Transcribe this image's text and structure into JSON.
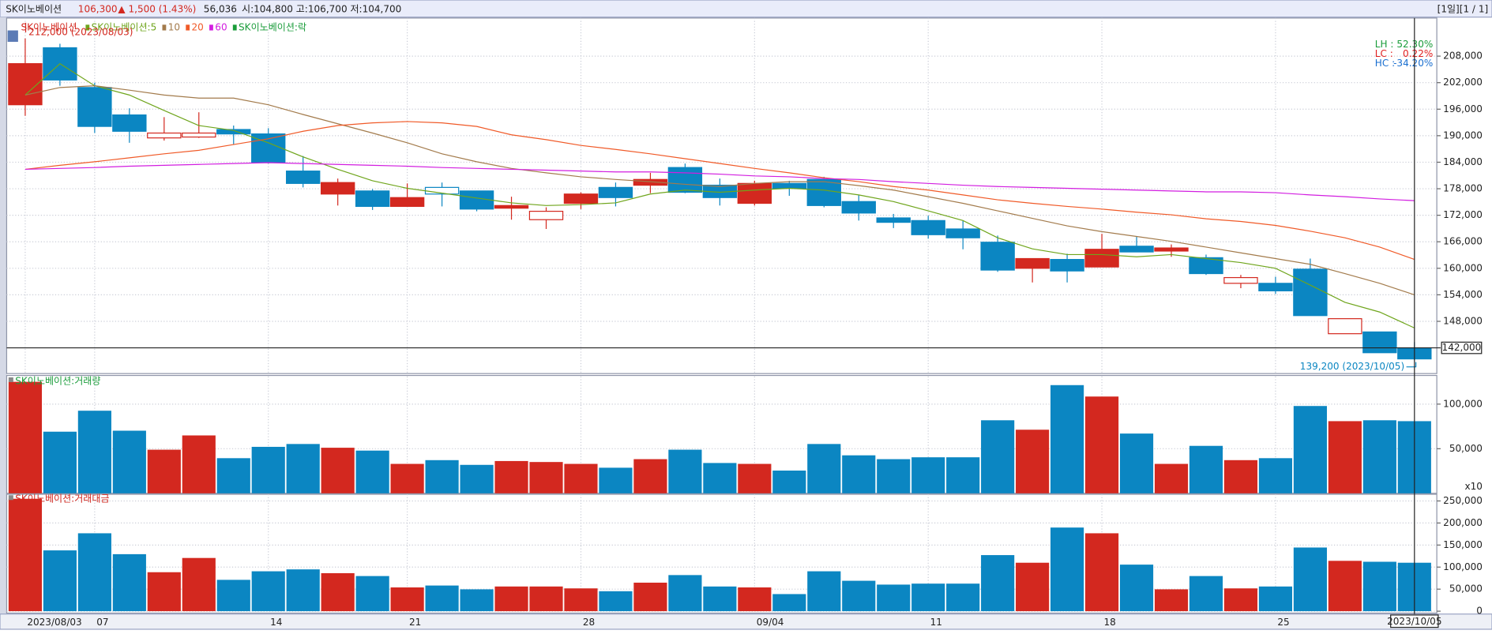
{
  "header": {
    "name": "SK이노베이션",
    "price": "106,300",
    "change": "▲ 1,500 (1.43%)",
    "volume": "56,036",
    "ohl": "시:104,800 고:106,700 저:104,700",
    "period": "[1일][1 / 1]"
  },
  "chart_data": [
    {
      "type": "candlestick",
      "name": "SK이노베이션",
      "legend_extra": "SK이노베이션:락",
      "categories": [
        "2023/08/03",
        null,
        "07",
        null,
        null,
        null,
        null,
        "14",
        null,
        null,
        null,
        "21",
        null,
        null,
        null,
        null,
        "28",
        null,
        null,
        null,
        null,
        "09/04",
        null,
        null,
        null,
        null,
        "11",
        null,
        null,
        null,
        null,
        "18",
        null,
        null,
        null,
        null,
        "25",
        null,
        null,
        null,
        null
      ],
      "open": [
        197000,
        209900,
        200900,
        194700,
        189500,
        189700,
        191400,
        190400,
        182000,
        176800,
        177500,
        174000,
        178300,
        177500,
        173600,
        171000,
        174700,
        178300,
        178800,
        182800,
        178800,
        174700,
        179200,
        180100,
        175100,
        171400,
        170800,
        168900,
        165900,
        160000,
        162000,
        160300,
        165000,
        163900,
        162400,
        156600,
        156600,
        159800,
        145200,
        145600,
        142000
      ],
      "high": [
        212000,
        210800,
        202000,
        196200,
        194200,
        195300,
        192300,
        191700,
        185400,
        180300,
        177900,
        179200,
        179400,
        177500,
        176200,
        173800,
        177200,
        179400,
        181600,
        183700,
        180300,
        179800,
        179800,
        180700,
        176600,
        172300,
        171900,
        170800,
        167400,
        162200,
        163300,
        167800,
        167200,
        165400,
        163100,
        158500,
        158100,
        162200,
        148600,
        145600,
        143300
      ],
      "low": [
        194500,
        201300,
        190600,
        188400,
        188900,
        189500,
        188000,
        183700,
        178300,
        174200,
        173200,
        174000,
        174000,
        172900,
        171000,
        168900,
        173400,
        174000,
        177000,
        177000,
        174200,
        174200,
        176400,
        173800,
        170800,
        169100,
        166700,
        164300,
        159200,
        156800,
        156800,
        160300,
        163700,
        162600,
        158500,
        155500,
        154200,
        149300,
        145200,
        140900,
        139200
      ],
      "close": [
        206300,
        202600,
        192100,
        191000,
        190600,
        190600,
        190400,
        183900,
        179200,
        179400,
        174000,
        176000,
        176800,
        173400,
        174200,
        172900,
        176800,
        176000,
        180100,
        177200,
        176000,
        179200,
        178100,
        174200,
        172500,
        170400,
        167600,
        166900,
        159600,
        162200,
        159400,
        164300,
        163700,
        164600,
        158800,
        157900,
        154900,
        149300,
        148600,
        140900,
        139500
      ],
      "hollow": [
        4,
        5,
        12,
        15,
        35,
        38
      ],
      "up_color": "#d3281f",
      "down_color": "#0b86c2",
      "series": [
        {
          "name": "SK이노베이션:5",
          "color": "#6fa51c",
          "values": [
            199200,
            206300,
            201300,
            199200,
            195700,
            192300,
            191200,
            188400,
            185200,
            182400,
            179800,
            178100,
            177000,
            175900,
            174800,
            174200,
            174400,
            174800,
            176800,
            177700,
            177200,
            177700,
            178100,
            177700,
            176600,
            175100,
            173000,
            170800,
            166900,
            164400,
            163100,
            163100,
            162600,
            163100,
            162200,
            161300,
            160000,
            156200,
            152300,
            150100,
            146500
          ]
        },
        {
          "name": "10",
          "color": "#a37b4c",
          "values": [
            199200,
            200900,
            201300,
            200300,
            199200,
            198500,
            198500,
            197000,
            194800,
            192700,
            190600,
            188400,
            185900,
            184100,
            182600,
            181600,
            180700,
            180100,
            179600,
            179000,
            178500,
            179200,
            179600,
            179600,
            178700,
            177700,
            176200,
            174700,
            173000,
            171300,
            169600,
            168300,
            167200,
            166100,
            164800,
            163500,
            162200,
            160900,
            158800,
            156600,
            154000
          ]
        },
        {
          "name": "20",
          "color": "#f05a28",
          "values": [
            182400,
            183300,
            184100,
            185000,
            185900,
            186700,
            188000,
            189300,
            191000,
            192300,
            192900,
            193200,
            192900,
            192100,
            190200,
            189100,
            187800,
            186900,
            185900,
            184800,
            183700,
            182600,
            181600,
            180500,
            179600,
            178500,
            177700,
            176600,
            175500,
            174700,
            174000,
            173400,
            172700,
            172100,
            171200,
            170600,
            169700,
            168400,
            166900,
            164800,
            162000
          ]
        },
        {
          "name": "60",
          "color": "#d21ee0",
          "values": [
            182400,
            182600,
            182800,
            183100,
            183300,
            183500,
            183700,
            183900,
            183700,
            183500,
            183300,
            183100,
            182800,
            182600,
            182400,
            182200,
            182000,
            181800,
            181800,
            181600,
            181300,
            180900,
            180700,
            180300,
            180100,
            179600,
            179200,
            178800,
            178500,
            178300,
            178100,
            177900,
            177700,
            177500,
            177300,
            177300,
            177100,
            176600,
            176200,
            175700,
            175300
          ]
        }
      ],
      "ylim": [
        136400,
        216400
      ],
      "yticks": [
        {
          "value": 208000,
          "label": "208,000"
        },
        {
          "value": 202000,
          "label": "202,000"
        },
        {
          "value": 196000,
          "label": "196,000"
        },
        {
          "value": 190000,
          "label": "190,000"
        },
        {
          "value": 184000,
          "label": "184,000"
        },
        {
          "value": 178000,
          "label": "178,000"
        },
        {
          "value": 172000,
          "label": "172,000"
        },
        {
          "value": 166000,
          "label": "166,000"
        },
        {
          "value": 160000,
          "label": "160,000"
        },
        {
          "value": 154000,
          "label": "154,000"
        },
        {
          "value": 148000,
          "label": "148,000"
        }
      ],
      "price_line": {
        "value": 142000,
        "label": "142,000"
      },
      "high_label": "212,000 (2023/08/03)",
      "low_label": "139,200 (2023/10/05)",
      "stats": [
        {
          "label": "LH :",
          "text": "52.30%",
          "color": "#1a9c3a"
        },
        {
          "label": "LC :",
          "text": "0.22%",
          "color": "#e02020"
        },
        {
          "label": "HC :",
          "text": "-34.20%",
          "color": "#1a6fd0"
        }
      ],
      "cursor_label": "2023/10/05"
    },
    {
      "type": "bar",
      "title": "SK이노베이션:거래량",
      "unit_label": "x10",
      "values": [
        125000,
        69100,
        92600,
        70200,
        48900,
        64900,
        39400,
        52100,
        55300,
        51100,
        47900,
        33000,
        37200,
        31900,
        36200,
        35100,
        33000,
        28700,
        38300,
        48900,
        34000,
        33000,
        25500,
        55300,
        42600,
        38300,
        40400,
        40400,
        81900,
        71300,
        121300,
        108500,
        67000,
        33000,
        53200,
        37200,
        39400,
        97900,
        80900,
        81900,
        80900
      ],
      "ylim": [
        0,
        130000
      ],
      "yticks": [
        {
          "value": 50000,
          "label": "50,000"
        },
        {
          "value": 100000,
          "label": "100,000"
        }
      ]
    },
    {
      "type": "bar",
      "title": "SK이노베이션:거래대금",
      "values": [
        255000,
        137900,
        176700,
        129300,
        88400,
        120700,
        71100,
        90500,
        94800,
        86200,
        79700,
        53900,
        58200,
        49600,
        56000,
        56000,
        51700,
        45300,
        64700,
        81900,
        56000,
        53900,
        38800,
        90500,
        69000,
        60300,
        62500,
        62500,
        127200,
        109900,
        189700,
        176700,
        105600,
        49600,
        79700,
        51700,
        56000,
        144400,
        114200,
        112100,
        109900
      ],
      "ylim": [
        0,
        263000
      ],
      "yticks": [
        0,
        {
          "value": 50000,
          "label": "50,000"
        },
        {
          "value": 100000,
          "label": "100,000"
        },
        {
          "value": 150000,
          "label": "150,000"
        },
        {
          "value": 200000,
          "label": "200,000"
        },
        {
          "value": 250000,
          "label": "250,000"
        }
      ]
    }
  ]
}
